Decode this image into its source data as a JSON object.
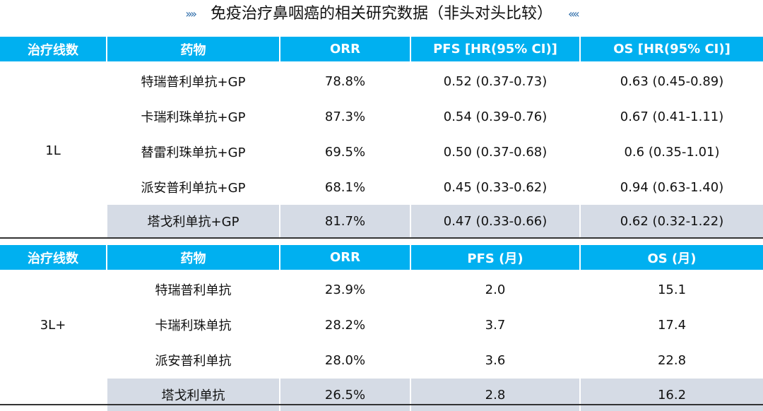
{
  "title": "免疫治疗鼻咽癌的相关研究数据（非头对头比较）",
  "table1": {
    "headers": [
      "治疗线数",
      "药物",
      "ORR",
      "PFS [HR(95% CI)]",
      "OS [HR(95% CI)]"
    ],
    "line": "1L",
    "rows": [
      [
        "特瑞普利单抗+GP",
        "78.8%",
        "0.52 (0.37-0.73)",
        "0.63 (0.45-0.89)"
      ],
      [
        "卡瑞利珠单抗+GP",
        "87.3%",
        "0.54 (0.39-0.76)",
        "0.67 (0.41-1.11)"
      ],
      [
        "替雷利珠单抗+GP",
        "69.5%",
        "0.50 (0.37-0.68)",
        "0.6 (0.35-1.01)"
      ],
      [
        "派安普利单抗+GP",
        "68.1%",
        "0.45 (0.33-0.62)",
        "0.94  (0.63-1.40)"
      ],
      [
        "塔戈利单抗+GP",
        "81.7%",
        "0.47 (0.33-0.66)",
        "0.62 (0.32-1.22)"
      ]
    ]
  },
  "table2": {
    "headers": [
      "治疗线数",
      "药物",
      "ORR",
      "PFS (月)",
      "OS (月)"
    ],
    "line": "3L+",
    "rows": [
      [
        "特瑞普利单抗",
        "23.9%",
        "2.0",
        "15.1"
      ],
      [
        "卡瑞利珠单抗",
        "28.2%",
        "3.7",
        "17.4"
      ],
      [
        "派安普利单抗",
        "28.0%",
        "3.6",
        "22.8"
      ],
      [
        "塔戈利单抗",
        "26.5%",
        "2.8",
        "16.2"
      ]
    ]
  },
  "colors": {
    "header": "#00b0f0",
    "highlight": "#d5dbe5"
  }
}
